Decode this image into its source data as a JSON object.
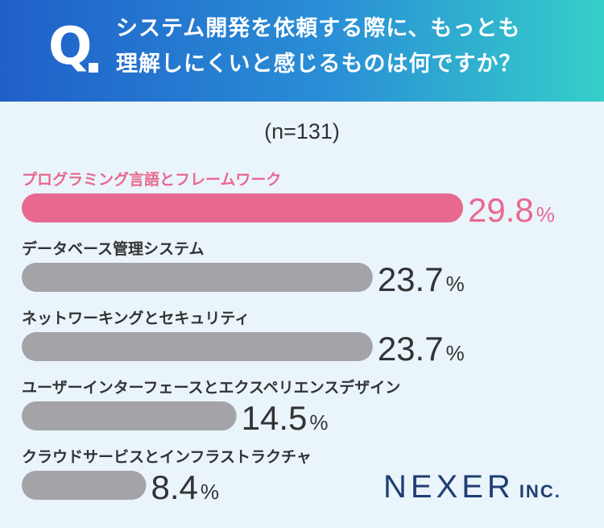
{
  "header": {
    "q_letter": "Q",
    "question_line1": "システム開発を依頼する際に、もっとも",
    "question_line2": "理解しにくいと感じるものは何ですか？"
  },
  "sample_size": "(n=131)",
  "chart_data": {
    "type": "bar",
    "orientation": "horizontal",
    "categories": [
      "プログラミング言語とフレームワーク",
      "データベース管理システム",
      "ネットワーキングとセキュリティ",
      "ユーザーインターフェースとエクスペリエンスデザイン",
      "クラウドサービスとインフラストラクチャ"
    ],
    "values": [
      29.8,
      23.7,
      23.7,
      14.5,
      8.4
    ],
    "value_suffix": "%",
    "xlim": [
      0,
      29.8
    ],
    "grid": false,
    "highlight_index": 0,
    "colors": {
      "highlight": "#e8698f",
      "default": "#a3a3a8",
      "highlight_label": "#e8698f",
      "default_label": "#333333",
      "value_default": "#333333"
    }
  },
  "logo": {
    "main": "NEXER",
    "sub": "INC."
  }
}
